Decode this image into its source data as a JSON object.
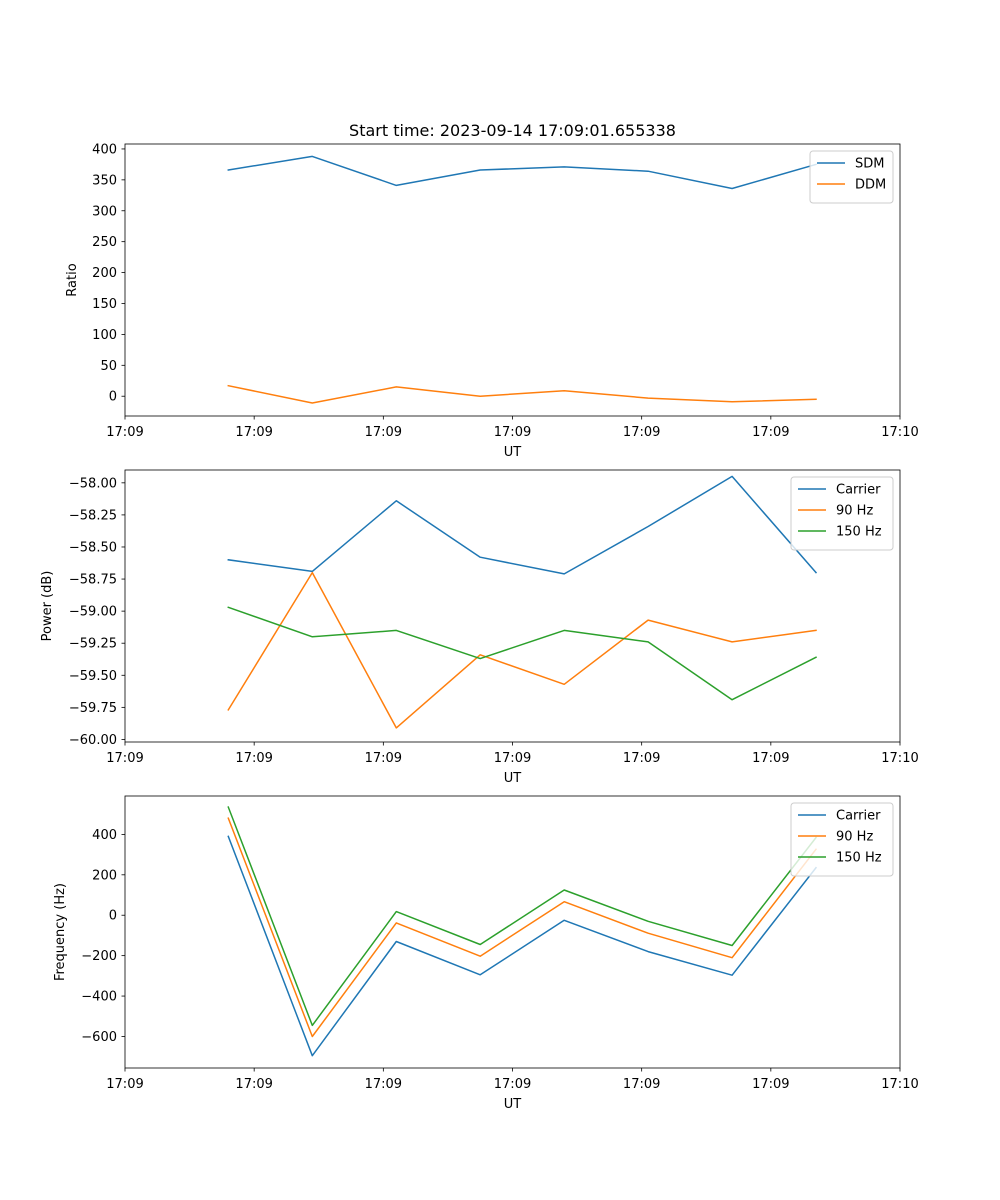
{
  "figure": {
    "title": "Start time: 2023-09-14 17:09:01.655338"
  },
  "colors": {
    "blue": "#1f77b4",
    "orange": "#ff7f0e",
    "green": "#2ca02c"
  },
  "chart_data": [
    {
      "type": "line",
      "title": "Start time: 2023-09-14 17:09:01.655338",
      "xlabel": "UT",
      "ylabel": "Ratio",
      "x": [
        0.8,
        1.45,
        2.1,
        2.75,
        3.4,
        4.05,
        4.7,
        5.35
      ],
      "xlim": [
        0,
        6
      ],
      "xticks": [
        0,
        1,
        2,
        3,
        4,
        5,
        6
      ],
      "xtick_labels": [
        "17:09",
        "17:09",
        "17:09",
        "17:09",
        "17:09",
        "17:09",
        "17:10"
      ],
      "ylim": [
        -32,
        408
      ],
      "yticks": [
        0,
        50,
        100,
        150,
        200,
        250,
        300,
        350,
        400
      ],
      "ytick_labels": [
        "0",
        "50",
        "100",
        "150",
        "200",
        "250",
        "300",
        "350",
        "400"
      ],
      "series": [
        {
          "name": "SDM",
          "color": "#1f77b4",
          "values": [
            366,
            388,
            341,
            366,
            371,
            364,
            336,
            375
          ]
        },
        {
          "name": "DDM",
          "color": "#ff7f0e",
          "values": [
            17,
            -11,
            15,
            0,
            9,
            -3,
            -9,
            -5
          ]
        }
      ],
      "legend": "top-right",
      "grid": false
    },
    {
      "type": "line",
      "title": "",
      "xlabel": "UT",
      "ylabel": "Power (dB)",
      "x": [
        0.8,
        1.45,
        2.1,
        2.75,
        3.4,
        4.05,
        4.7,
        5.35
      ],
      "xlim": [
        0,
        6
      ],
      "xticks": [
        0,
        1,
        2,
        3,
        4,
        5,
        6
      ],
      "xtick_labels": [
        "17:09",
        "17:09",
        "17:09",
        "17:09",
        "17:09",
        "17:09",
        "17:10"
      ],
      "ylim": [
        -60.02,
        -57.9
      ],
      "yticks": [
        -60.0,
        -59.75,
        -59.5,
        -59.25,
        -59.0,
        -58.75,
        -58.5,
        -58.25,
        -58.0
      ],
      "ytick_labels": [
        "−60.00",
        "−59.75",
        "−59.50",
        "−59.25",
        "−59.00",
        "−58.75",
        "−58.50",
        "−58.25",
        "−58.00"
      ],
      "series": [
        {
          "name": "Carrier",
          "color": "#1f77b4",
          "values": [
            -58.6,
            -58.69,
            -58.14,
            -58.58,
            -58.71,
            -58.34,
            -57.95,
            -58.7
          ]
        },
        {
          "name": "90 Hz",
          "color": "#ff7f0e",
          "values": [
            -59.77,
            -58.7,
            -59.91,
            -59.34,
            -59.57,
            -59.07,
            -59.24,
            -59.15
          ]
        },
        {
          "name": "150 Hz",
          "color": "#2ca02c",
          "values": [
            -58.97,
            -59.2,
            -59.15,
            -59.37,
            -59.15,
            -59.24,
            -59.69,
            -59.36
          ]
        }
      ],
      "legend": "top-right",
      "grid": false
    },
    {
      "type": "line",
      "title": "",
      "xlabel": "UT",
      "ylabel": "Frequency (Hz)",
      "x": [
        0.8,
        1.45,
        2.1,
        2.75,
        3.4,
        4.05,
        4.7,
        5.35
      ],
      "xlim": [
        0,
        6
      ],
      "xticks": [
        0,
        1,
        2,
        3,
        4,
        5,
        6
      ],
      "xtick_labels": [
        "17:09",
        "17:09",
        "17:09",
        "17:09",
        "17:09",
        "17:09",
        "17:10"
      ],
      "ylim": [
        -756,
        590
      ],
      "yticks": [
        -600,
        -400,
        -200,
        0,
        200,
        400
      ],
      "ytick_labels": [
        "−600",
        "−400",
        "−200",
        "0",
        "200",
        "400"
      ],
      "series": [
        {
          "name": "Carrier",
          "color": "#1f77b4",
          "values": [
            390,
            -695,
            -130,
            -295,
            -25,
            -180,
            -297,
            235
          ]
        },
        {
          "name": "90 Hz",
          "color": "#ff7f0e",
          "values": [
            480,
            -600,
            -38,
            -203,
            67,
            -89,
            -210,
            326
          ]
        },
        {
          "name": "150 Hz",
          "color": "#2ca02c",
          "values": [
            535,
            -545,
            18,
            -145,
            125,
            -30,
            -150,
            384
          ]
        }
      ],
      "legend": "top-right",
      "grid": false
    }
  ]
}
